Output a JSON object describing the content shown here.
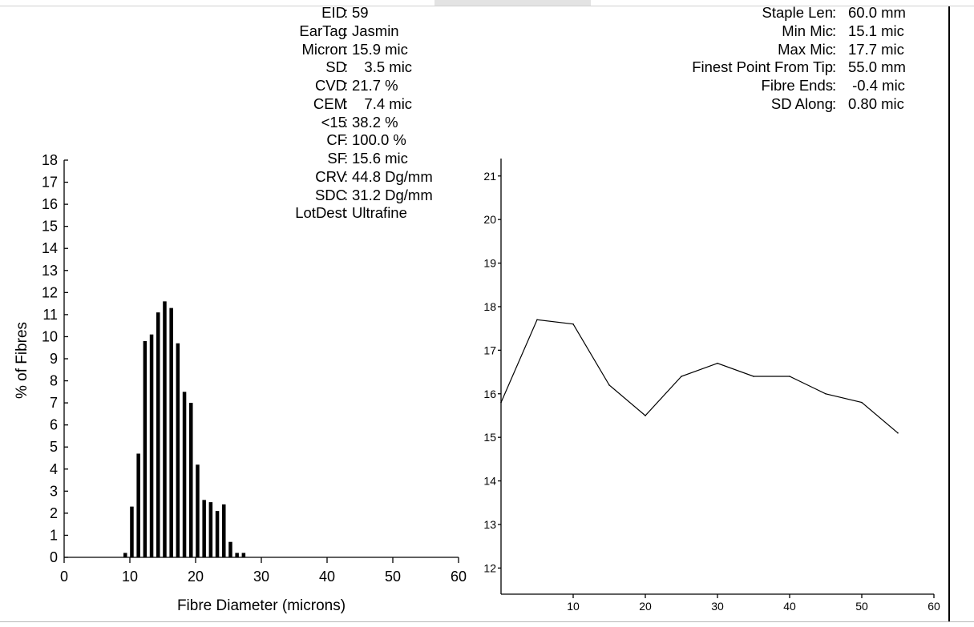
{
  "stats_left": [
    {
      "label": "EID",
      "value": "59"
    },
    {
      "label": "EarTag",
      "value": "Jasmin"
    },
    {
      "label": "Micron",
      "value": "15.9 mic"
    },
    {
      "label": "SD",
      "value": "   3.5 mic"
    },
    {
      "label": "CVD",
      "value": "21.7 %"
    },
    {
      "label": "CEM",
      "value": "   7.4 mic"
    },
    {
      "label": "<15",
      "value": "38.2 %"
    },
    {
      "label": "CF",
      "value": "100.0 %"
    },
    {
      "label": "SF",
      "value": "15.6 mic"
    },
    {
      "label": "CRV",
      "value": "44.8 Dg/mm"
    },
    {
      "label": "SDC",
      "value": "31.2 Dg/mm"
    },
    {
      "label": "LotDest",
      "value": "Ultrafine"
    }
  ],
  "stats_right": [
    {
      "label": "Staple Len",
      "value": "60.0 mm"
    },
    {
      "label": "Min Mic",
      "value": "15.1 mic"
    },
    {
      "label": "Max Mic",
      "value": "17.7 mic"
    },
    {
      "label": "Finest Point From Tip",
      "value": "55.0 mm"
    },
    {
      "label": "Fibre Ends",
      "value": " -0.4 mic"
    },
    {
      "label": "SD Along",
      "value": "0.80 mic"
    }
  ],
  "chart_data": [
    {
      "type": "bar",
      "title": "",
      "xlabel": "Fibre Diameter (microns)",
      "ylabel": "% of Fibres",
      "xlim": [
        0,
        60
      ],
      "ylim": [
        0,
        18
      ],
      "xticks": [
        0,
        10,
        20,
        30,
        40,
        50,
        60
      ],
      "yticks": [
        0,
        1,
        2,
        3,
        4,
        5,
        6,
        7,
        8,
        9,
        10,
        11,
        12,
        13,
        14,
        15,
        16,
        17,
        18
      ],
      "x": [
        9,
        10,
        11,
        12,
        13,
        14,
        15,
        16,
        17,
        18,
        19,
        20,
        21,
        22,
        23,
        24,
        25,
        26,
        27
      ],
      "values": [
        0.2,
        2.3,
        4.7,
        9.8,
        10.1,
        11.1,
        11.6,
        11.3,
        9.7,
        7.5,
        7.0,
        4.2,
        2.6,
        2.5,
        2.1,
        2.4,
        0.7,
        0.2,
        0.2
      ],
      "grid": false
    },
    {
      "type": "line",
      "title": "",
      "xlabel": "",
      "ylabel": "",
      "xlim": [
        0,
        60
      ],
      "ylim": [
        11.4,
        21.4
      ],
      "xticks": [
        10,
        20,
        30,
        40,
        50,
        60
      ],
      "yticks": [
        12,
        13,
        14,
        15,
        16,
        17,
        18,
        19,
        20,
        21
      ],
      "x": [
        0,
        5,
        10,
        15,
        20,
        25,
        30,
        35,
        40,
        45,
        50,
        55
      ],
      "values": [
        15.8,
        17.7,
        17.6,
        16.2,
        15.5,
        16.4,
        16.7,
        16.4,
        16.4,
        16.0,
        15.8,
        15.1
      ],
      "grid": false
    }
  ]
}
